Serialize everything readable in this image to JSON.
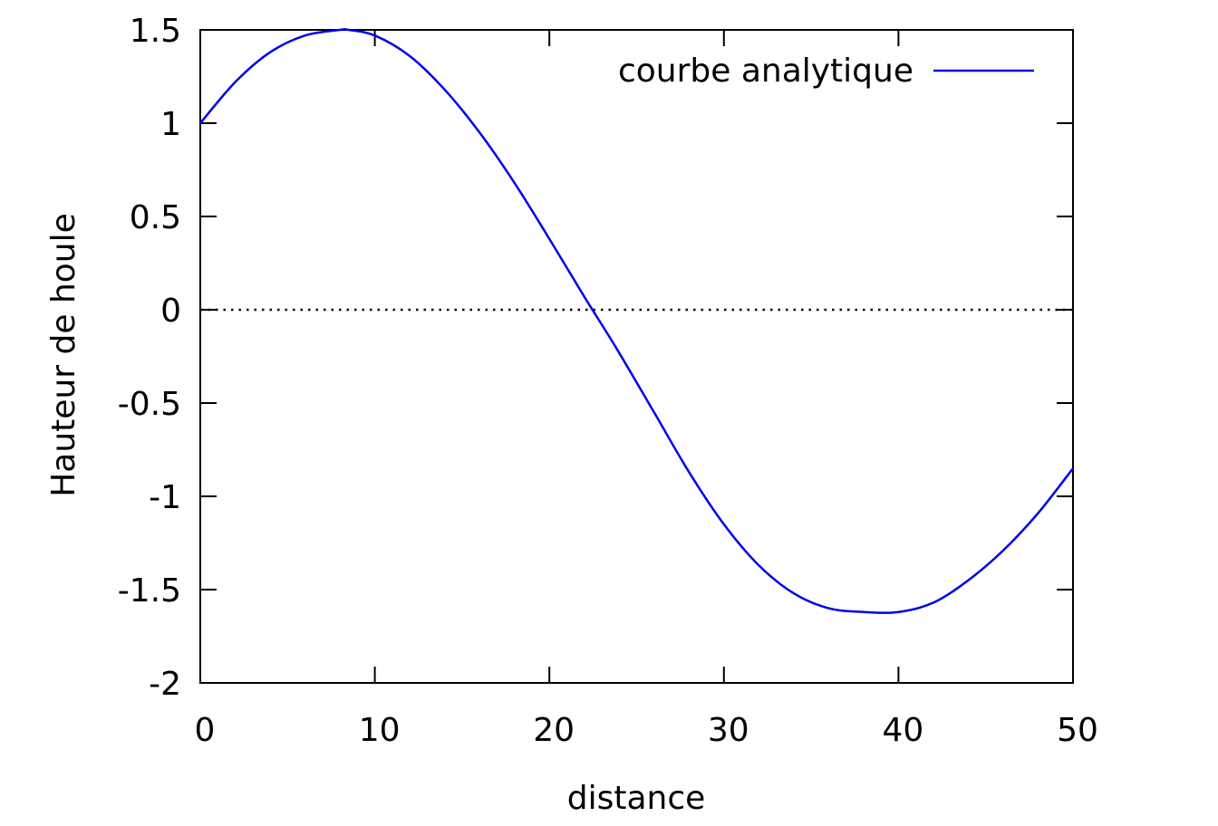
{
  "chart_data": {
    "type": "line",
    "title": "",
    "xlabel": "distance",
    "ylabel": "Hauteur de houle",
    "xlim": [
      0,
      50
    ],
    "ylim": [
      -2,
      1.5
    ],
    "xticks": [
      0,
      10,
      20,
      30,
      40,
      50
    ],
    "xtick_labels": [
      "0",
      "10",
      "20",
      "30",
      "40",
      "50"
    ],
    "yticks": [
      -2,
      -1.5,
      -1,
      -0.5,
      0,
      0.5,
      1,
      1.5
    ],
    "ytick_labels": [
      "-2",
      "-1.5",
      "-1",
      "-0.5",
      "0",
      "0.5",
      "1",
      "1.5"
    ],
    "grid": false,
    "zero_line": true,
    "legend_position": "top-right",
    "series": [
      {
        "name": "courbe analytique",
        "color": "#0000ee",
        "x": [
          0,
          2,
          4,
          6,
          8,
          8.5,
          10,
          12,
          14,
          16,
          18,
          20,
          22,
          23.8,
          26,
          28,
          30,
          32,
          34,
          36,
          38,
          40,
          42,
          44,
          46,
          48,
          50
        ],
        "y": [
          1.0,
          1.22,
          1.38,
          1.47,
          1.5,
          1.5,
          1.47,
          1.36,
          1.18,
          0.95,
          0.68,
          0.38,
          0.07,
          -0.2,
          -0.55,
          -0.87,
          -1.15,
          -1.37,
          -1.52,
          -1.6,
          -1.62,
          -1.62,
          -1.57,
          -1.45,
          -1.29,
          -1.09,
          -0.85
        ]
      }
    ]
  }
}
